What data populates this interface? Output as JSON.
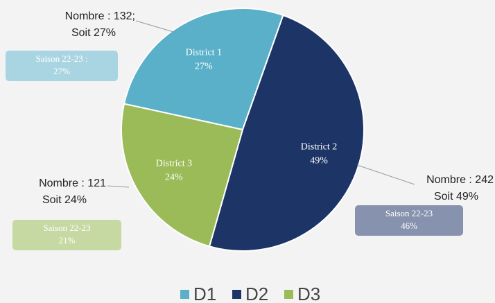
{
  "chart_data": {
    "type": "pie",
    "categories": [
      "District 1",
      "District 2",
      "District 3"
    ],
    "values": [
      27,
      49,
      24
    ],
    "value_labels": [
      "27%",
      "49%",
      "24%"
    ],
    "colors": [
      "#5ab0c8",
      "#1d3566",
      "#9bbb59"
    ],
    "legend": [
      "D1",
      "D2",
      "D3"
    ],
    "annotations": [
      {
        "lines": [
          "Nombre : 132;",
          "Soit 27%"
        ]
      },
      {
        "lines": [
          "Nombre : 242",
          "Soit 49%"
        ]
      },
      {
        "lines": [
          "Nombre : 121",
          "Soit 24%"
        ]
      }
    ],
    "comparisons": [
      {
        "lines": [
          "Saison 22-23 :",
          "27%"
        ]
      },
      {
        "lines": [
          "Saison 22-23",
          "46%"
        ]
      },
      {
        "lines": [
          "Saison 22-23",
          "21%"
        ]
      }
    ]
  }
}
